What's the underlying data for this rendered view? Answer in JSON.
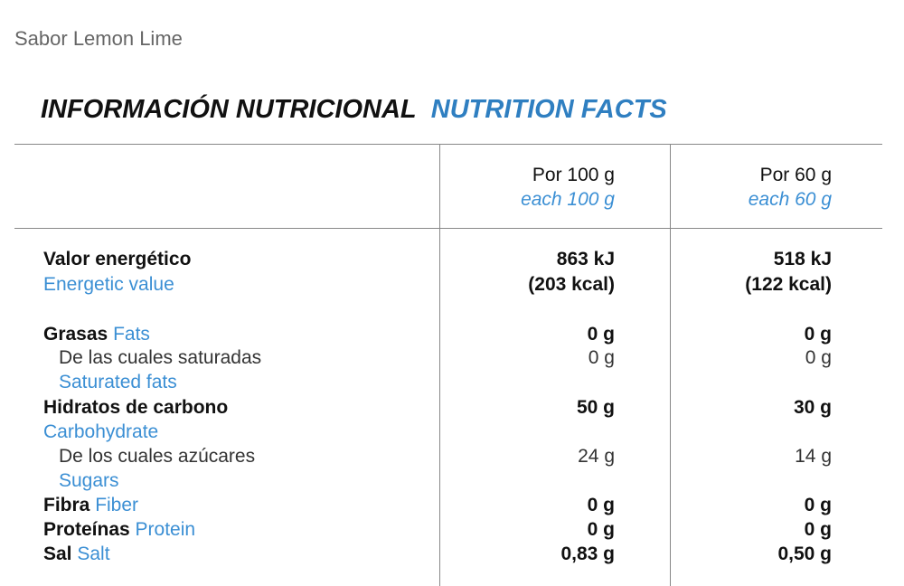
{
  "subtitle": "Sabor Lemon Lime",
  "heading": {
    "es": "INFORMACIÓN NUTRICIONAL",
    "en": "NUTRITION FACTS"
  },
  "table": {
    "columns": [
      {
        "es": "Por 100 g",
        "en": "each 100 g"
      },
      {
        "es": "Por 60 g",
        "en": "each 60 g"
      }
    ],
    "rows": [
      {
        "es": "Valor energético",
        "en": "Energetic value",
        "values": [
          "863 kJ",
          "518 kJ"
        ],
        "sub_values": [
          "(203 kcal)",
          "(122 kcal)"
        ]
      },
      {
        "es": "Grasas",
        "en": "Fats",
        "values": [
          "0 g",
          "0 g"
        ]
      },
      {
        "es": "De las cuales saturadas",
        "en": "Saturated fats",
        "values": [
          "0 g",
          "0 g"
        ]
      },
      {
        "es": "Hidratos de carbono",
        "en": "Carbohydrate",
        "values": [
          "50 g",
          "30 g"
        ]
      },
      {
        "es": "De los cuales azúcares",
        "en": "Sugars",
        "values": [
          "24 g",
          "14 g"
        ]
      },
      {
        "es": "Fibra",
        "en": "Fiber",
        "values": [
          "0 g",
          "0 g"
        ]
      },
      {
        "es": "Proteínas",
        "en": "Protein",
        "values": [
          "0 g",
          "0 g"
        ]
      },
      {
        "es": "Sal",
        "en": "Salt",
        "values": [
          "0,83 g",
          "0,50 g"
        ]
      }
    ]
  }
}
